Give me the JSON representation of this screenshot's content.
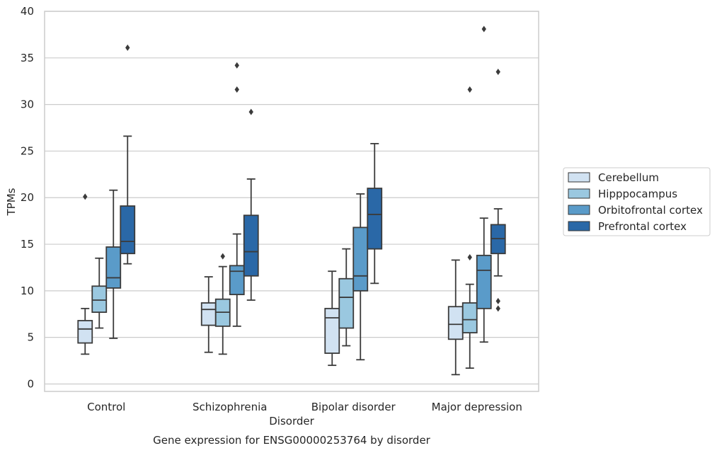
{
  "caption": "Gene expression for ENSG00000253764 by disorder",
  "chart_data": {
    "type": "box",
    "xlabel": "Disorder",
    "ylabel": "TPMs",
    "ylim": [
      -0.8,
      40
    ],
    "yticks": [
      0,
      5,
      10,
      15,
      20,
      25,
      30,
      35,
      40
    ],
    "grid": "horizontal",
    "legend_placement": "right",
    "categories": [
      "Control",
      "Schizophrenia",
      "Bipolar disorder",
      "Major depression"
    ],
    "series": [
      {
        "name": "Cerebellum",
        "color": "#d1e2f2",
        "boxes": [
          {
            "whislo": 3.2,
            "q1": 4.4,
            "med": 5.9,
            "q3": 6.8,
            "whishi": 8.1,
            "fliers": [
              20.1
            ]
          },
          {
            "whislo": 3.4,
            "q1": 6.3,
            "med": 8.0,
            "q3": 8.7,
            "whishi": 11.5,
            "fliers": []
          },
          {
            "whislo": 2.0,
            "q1": 3.3,
            "med": 7.1,
            "q3": 8.1,
            "whishi": 12.1,
            "fliers": []
          },
          {
            "whislo": 1.0,
            "q1": 4.8,
            "med": 6.4,
            "q3": 8.3,
            "whishi": 13.3,
            "fliers": []
          }
        ]
      },
      {
        "name": "Hipppocampus",
        "color": "#9ac8e0",
        "boxes": [
          {
            "whislo": 6.0,
            "q1": 7.7,
            "med": 9.0,
            "q3": 10.5,
            "whishi": 13.5,
            "fliers": []
          },
          {
            "whislo": 3.2,
            "q1": 6.2,
            "med": 7.7,
            "q3": 9.1,
            "whishi": 12.6,
            "fliers": [
              13.7
            ]
          },
          {
            "whislo": 4.1,
            "q1": 6.0,
            "med": 9.3,
            "q3": 11.3,
            "whishi": 14.5,
            "fliers": []
          },
          {
            "whislo": 1.7,
            "q1": 5.5,
            "med": 6.9,
            "q3": 8.7,
            "whishi": 10.7,
            "fliers": [
              13.6,
              31.6
            ]
          }
        ]
      },
      {
        "name": "Orbitofrontal cortex",
        "color": "#5a9bc9",
        "boxes": [
          {
            "whislo": 4.9,
            "q1": 10.3,
            "med": 11.4,
            "q3": 14.7,
            "whishi": 20.8,
            "fliers": []
          },
          {
            "whislo": 6.2,
            "q1": 9.6,
            "med": 12.1,
            "q3": 12.7,
            "whishi": 16.1,
            "fliers": [
              31.6,
              34.2
            ]
          },
          {
            "whislo": 2.6,
            "q1": 10.0,
            "med": 11.6,
            "q3": 16.8,
            "whishi": 20.4,
            "fliers": []
          },
          {
            "whislo": 4.5,
            "q1": 8.1,
            "med": 12.2,
            "q3": 13.8,
            "whishi": 17.8,
            "fliers": [
              38.1
            ]
          }
        ]
      },
      {
        "name": "Prefrontal cortex",
        "color": "#2a68a7",
        "boxes": [
          {
            "whislo": 12.9,
            "q1": 14.0,
            "med": 15.3,
            "q3": 19.1,
            "whishi": 26.6,
            "fliers": [
              36.1
            ]
          },
          {
            "whislo": 9.0,
            "q1": 11.6,
            "med": 14.2,
            "q3": 18.1,
            "whishi": 22.0,
            "fliers": [
              29.2
            ]
          },
          {
            "whislo": 10.8,
            "q1": 14.5,
            "med": 18.2,
            "q3": 21.0,
            "whishi": 25.8,
            "fliers": []
          },
          {
            "whislo": 11.6,
            "q1": 14.0,
            "med": 15.6,
            "q3": 17.1,
            "whishi": 18.8,
            "fliers": [
              33.5,
              8.1,
              8.9
            ]
          }
        ]
      }
    ]
  }
}
